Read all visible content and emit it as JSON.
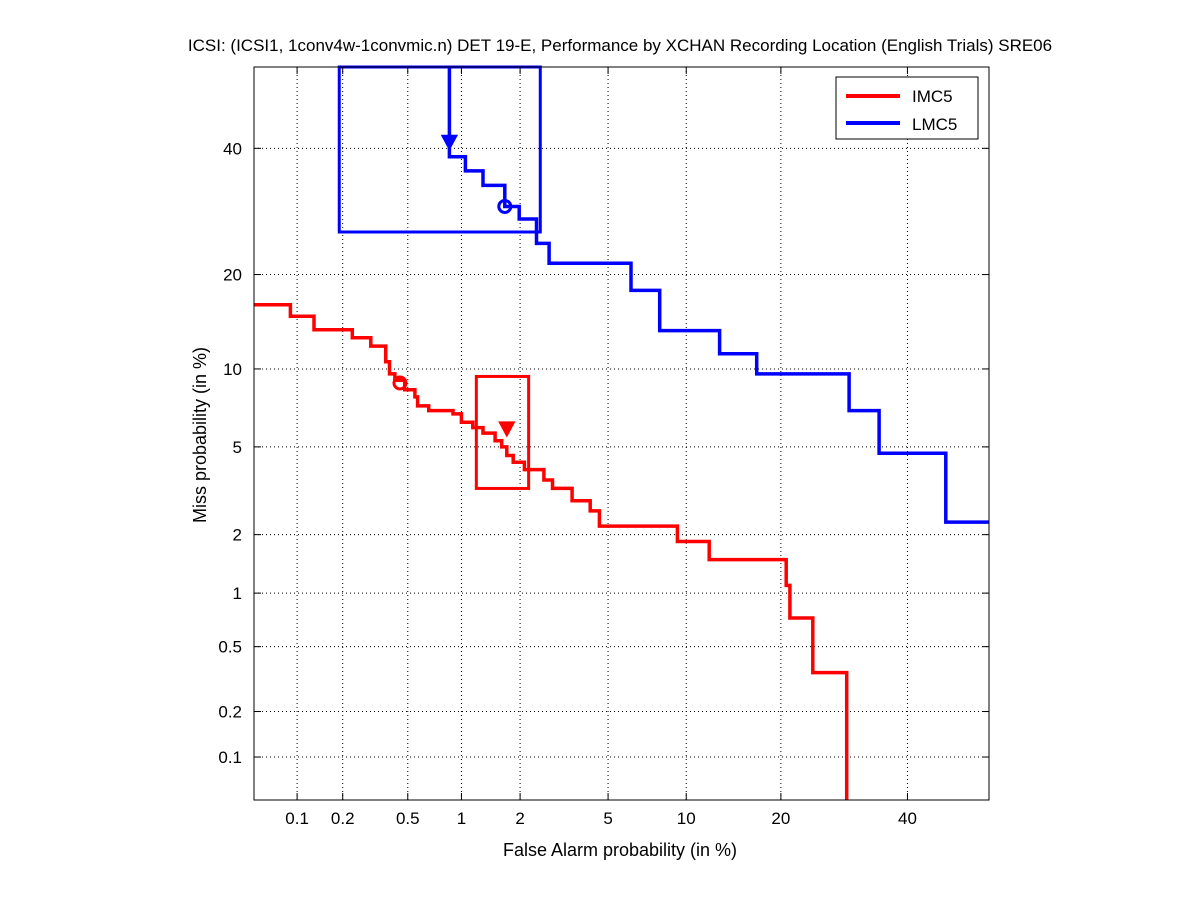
{
  "chart_data": {
    "type": "line",
    "subtype": "DET curve (normal-deviate scaled axes)",
    "title": "ICSI: (ICSI1, 1conv4w-1convmic.n) DET 19-E,  Performance by XCHAN Recording Location (English Trials) SRE06",
    "xlabel": "False Alarm probability (in %)",
    "ylabel": "Miss probability (in %)",
    "x_ticks": [
      0.1,
      0.2,
      0.5,
      1,
      2,
      5,
      10,
      20,
      40
    ],
    "x_tick_labels": [
      "0.1",
      "0.2",
      "0.5",
      "1",
      "2",
      "5",
      "10",
      "20",
      "40"
    ],
    "y_ticks": [
      0.1,
      0.2,
      0.5,
      1,
      2,
      5,
      10,
      20,
      40
    ],
    "y_tick_labels": [
      "0.1",
      "0.2",
      "0.5",
      "1",
      "2",
      "5",
      "10",
      "20",
      "40"
    ],
    "xlim": [
      0.05,
      55
    ],
    "ylim": [
      0.05,
      55
    ],
    "grid": true,
    "legend_position": "top-right",
    "series": [
      {
        "name": "IMC5",
        "color": "#ff0000",
        "fa": [
          0.05,
          0.09,
          0.09,
          0.13,
          0.13,
          0.23,
          0.23,
          0.3,
          0.3,
          0.37,
          0.37,
          0.39,
          0.39,
          0.42,
          0.42,
          0.48,
          0.48,
          0.55,
          0.55,
          0.57,
          0.57,
          0.66,
          0.66,
          0.9,
          0.9,
          1.0,
          1.0,
          1.15,
          1.15,
          1.3,
          1.3,
          1.5,
          1.5,
          1.62,
          1.62,
          1.72,
          1.72,
          1.85,
          1.85,
          2.1,
          2.1,
          2.6,
          2.6,
          2.85,
          2.85,
          3.5,
          3.5,
          4.2,
          4.2,
          4.6,
          4.6,
          9.3,
          9.3,
          12,
          12,
          20.7,
          20.7,
          21.2,
          21.2,
          24.4,
          24.4,
          29.6,
          29.6
        ],
        "miss": [
          16.3,
          16.3,
          15.0,
          15.0,
          13.6,
          13.6,
          12.8,
          12.8,
          12.0,
          12.0,
          10.6,
          10.6,
          9.6,
          9.6,
          9.1,
          9.1,
          8.4,
          8.4,
          7.9,
          7.9,
          7.3,
          7.3,
          7.0,
          7.0,
          6.8,
          6.8,
          6.3,
          6.3,
          6.0,
          6.0,
          5.7,
          5.7,
          5.3,
          5.3,
          5.0,
          5.0,
          4.6,
          4.6,
          4.3,
          4.3,
          4.0,
          4.0,
          3.6,
          3.6,
          3.3,
          3.3,
          2.9,
          2.9,
          2.6,
          2.6,
          2.2,
          2.2,
          1.85,
          1.85,
          1.5,
          1.5,
          1.1,
          1.1,
          0.73,
          0.73,
          0.35,
          0.35,
          0.05
        ],
        "actual_dcf_point": {
          "fa": 1.72,
          "miss": 5.9,
          "marker": "triangle-down"
        },
        "min_dcf_point": {
          "fa": 0.45,
          "miss": 8.9,
          "marker": "circle"
        },
        "confidence_box": {
          "fa": [
            1.2,
            2.2
          ],
          "miss": [
            3.3,
            9.4
          ]
        }
      },
      {
        "name": "LMC5",
        "color": "#0000ff",
        "fa": [
          0.86,
          0.86,
          1.05,
          1.05,
          1.3,
          1.3,
          1.68,
          1.68,
          1.98,
          1.98,
          2.4,
          2.4,
          2.75,
          2.75,
          6.2,
          6.2,
          8.0,
          8.0,
          13,
          13,
          17,
          17,
          30,
          30,
          35,
          35,
          47,
          47,
          55
        ],
        "miss": [
          55,
          38.5,
          38.5,
          36.0,
          36.0,
          33.5,
          33.5,
          30.0,
          30.0,
          28.0,
          28.0,
          24.3,
          24.3,
          21.5,
          21.5,
          18.0,
          18.0,
          13.5,
          13.5,
          11.3,
          11.3,
          9.6,
          9.6,
          7.0,
          7.0,
          4.7,
          4.7,
          2.3,
          2.3
        ],
        "actual_dcf_point": {
          "fa": 0.86,
          "miss": 41.0,
          "marker": "triangle-down"
        },
        "min_dcf_point": {
          "fa": 1.68,
          "miss": 30.0,
          "marker": "circle"
        },
        "confidence_box": {
          "fa": [
            0.19,
            2.5
          ],
          "miss": [
            26.0,
            55
          ]
        }
      }
    ]
  }
}
